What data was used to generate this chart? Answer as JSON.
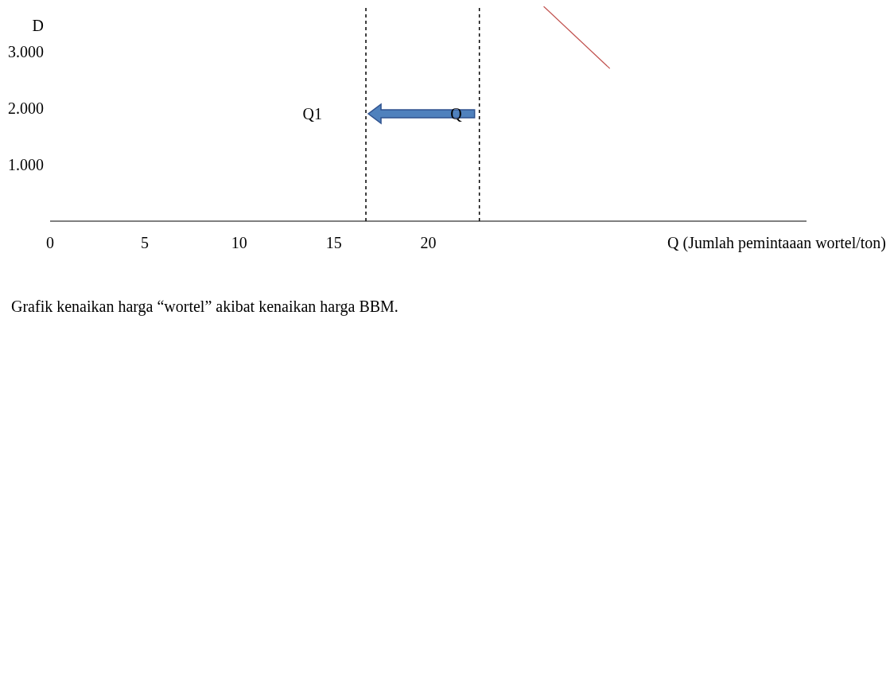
{
  "chart_data": {
    "type": "line",
    "xlabel": "Q (Jumlah pemintaaan wortel/ton)",
    "ylabel": "D",
    "series": [
      {
        "color": "#c0504d",
        "x": [
          26.1,
          29.6
        ],
        "values": [
          3800,
          2700
        ]
      }
    ],
    "xlim": [
      0,
      40
    ],
    "ylim": [
      0,
      3800
    ],
    "xticks": [
      0,
      5,
      10,
      15,
      20
    ],
    "yticks": [
      {
        "value": 1000,
        "label": "1.000"
      },
      {
        "value": 2000,
        "label": "2.000"
      },
      {
        "value": 3000,
        "label": "3.000"
      }
    ],
    "ref_lines": [
      {
        "axis": "x",
        "value": 16.7,
        "label": "Q1",
        "color": "#000000",
        "line_style": "dashed"
      },
      {
        "axis": "x",
        "value": 22.7,
        "label": "Q",
        "color": "#000000",
        "line_style": "dashed"
      }
    ],
    "annotations": [
      "Grafik  kenaikan harga “wortel” akibat kenaikan harga BBM."
    ],
    "grid": false,
    "legend": false,
    "marker": "none",
    "line_style": "solid"
  }
}
